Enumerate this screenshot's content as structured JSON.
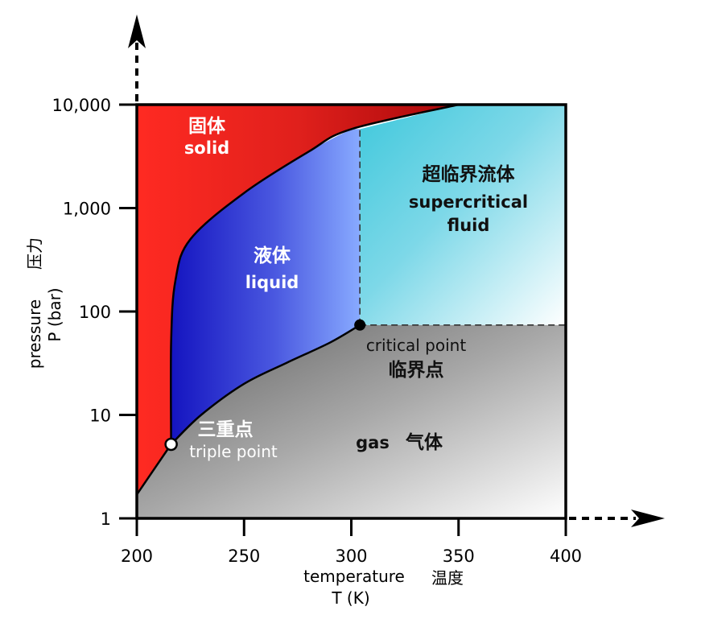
{
  "chart_data": {
    "type": "area",
    "title": "",
    "x_axis": {
      "label": "temperature",
      "label_cn": "温度",
      "unit_label": "T (K)",
      "ticks": [
        "200",
        "250",
        "300",
        "350",
        "400"
      ],
      "range": [
        200,
        400
      ],
      "scale": "linear"
    },
    "y_axis": {
      "label": "pressure",
      "label_cn": "压力",
      "unit_label": "P (bar)",
      "ticks": [
        "1",
        "10",
        "100",
        "1,000",
        "10,000"
      ],
      "range": [
        1,
        10000
      ],
      "scale": "log"
    },
    "regions": [
      {
        "key": "solid",
        "cn": "固体",
        "en": "solid",
        "color": "#e8231f"
      },
      {
        "key": "liquid",
        "cn": "液体",
        "en": "liquid",
        "color": "#2a2fd0"
      },
      {
        "key": "supercritical",
        "cn": "超临界流体",
        "en1": "supercritical",
        "en2": "fluid",
        "color": "#5ccde0"
      },
      {
        "key": "gas",
        "en": "gas",
        "cn": "气体",
        "color": "#8a8a8a"
      }
    ],
    "points": [
      {
        "key": "triple",
        "cn": "三重点",
        "en": "triple point",
        "T": 216,
        "P": 5.2
      },
      {
        "key": "critical",
        "cn": "临界点",
        "en": "critical point",
        "T": 304,
        "P": 74
      }
    ],
    "curves": {
      "sublimation": [
        [
          200,
          1.7
        ],
        [
          216,
          5.2
        ]
      ],
      "vaporization": [
        [
          216,
          5.2
        ],
        [
          230,
          10
        ],
        [
          250,
          20
        ],
        [
          270,
          32
        ],
        [
          290,
          50
        ],
        [
          304,
          74
        ]
      ],
      "melting": [
        [
          216,
          5.2
        ],
        [
          216,
          50
        ],
        [
          218,
          200
        ],
        [
          225,
          500
        ],
        [
          250,
          1400
        ],
        [
          280,
          3500
        ],
        [
          300,
          5800
        ],
        [
          350,
          10000
        ]
      ]
    },
    "grid": false,
    "legend": "none"
  }
}
